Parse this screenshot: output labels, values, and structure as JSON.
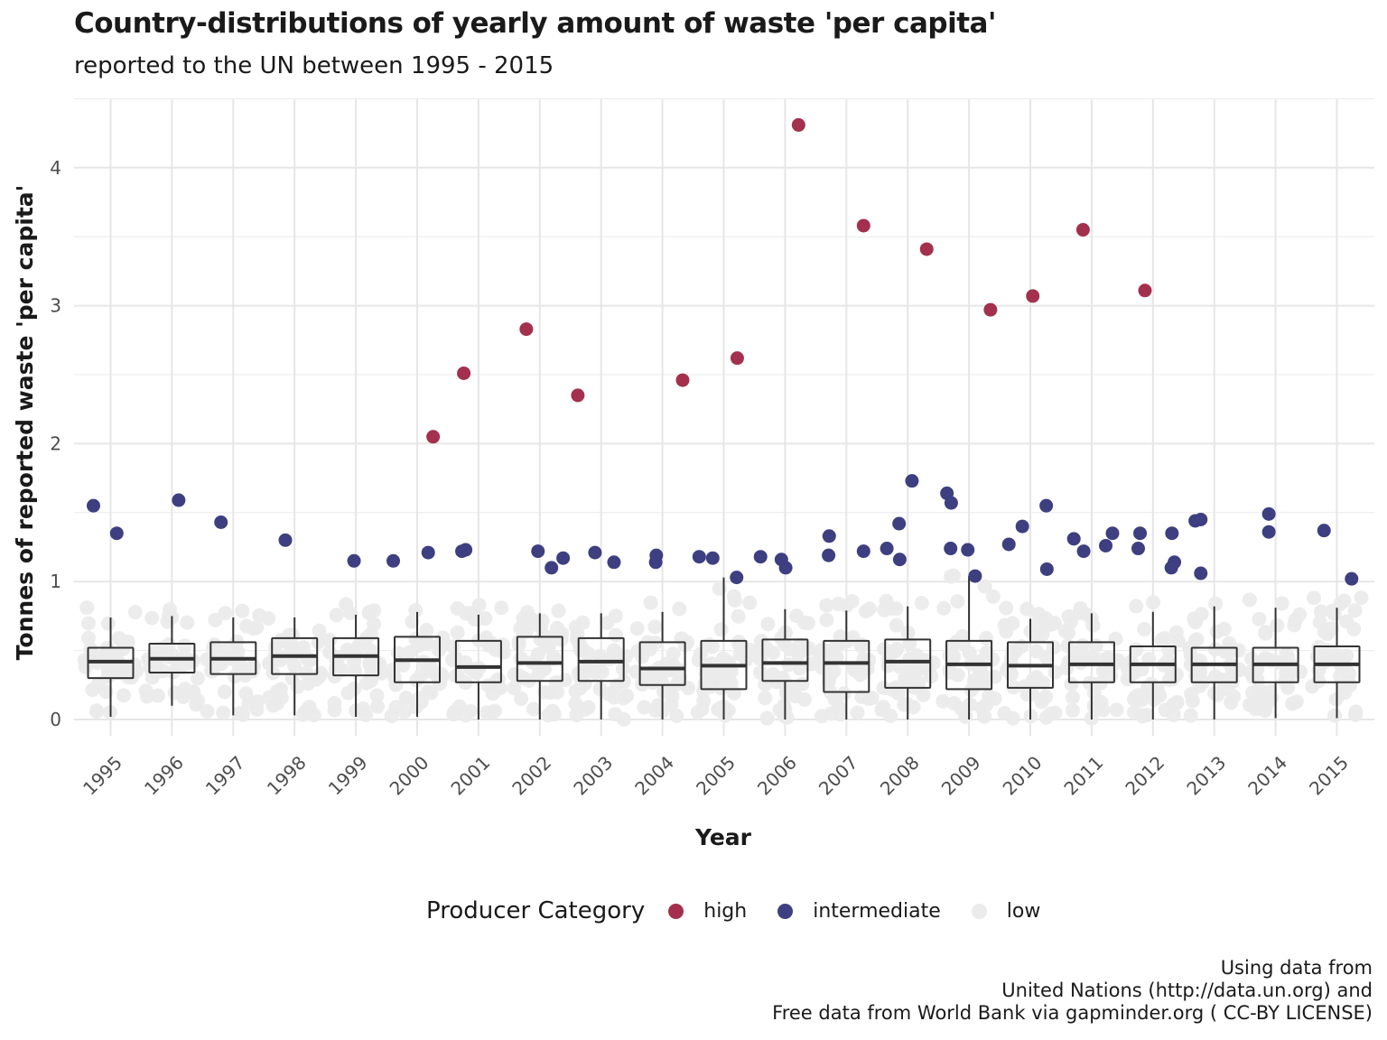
{
  "title": "Country-distributions of yearly amount of waste 'per capita'",
  "subtitle": "reported to the UN between 1995 - 2015",
  "caption": [
    "Using data from",
    "United Nations (http://data.un.org) and",
    "Free data from World Bank via gapminder.org ( CC-BY LICENSE)"
  ],
  "legend": {
    "title": "Producer Category",
    "items": [
      {
        "label": "high",
        "color": "#a3304d"
      },
      {
        "label": "intermediate",
        "color": "#3d3f80"
      },
      {
        "label": "low",
        "color": "#ebebeb"
      }
    ]
  },
  "chart_data": {
    "type": "box+scatter",
    "xlabel": "Year",
    "ylabel": "Tonnes of reported waste 'per capita'",
    "ylim": [
      0,
      4.5
    ],
    "yticks": [
      0,
      1,
      2,
      3,
      4
    ],
    "categories": [
      "1995",
      "1996",
      "1997",
      "1998",
      "1999",
      "2000",
      "2001",
      "2002",
      "2003",
      "2004",
      "2005",
      "2006",
      "2007",
      "2008",
      "2009",
      "2010",
      "2011",
      "2012",
      "2013",
      "2014",
      "2015"
    ],
    "boxes": [
      {
        "year": "1995",
        "whisker_low": 0.02,
        "q1": 0.3,
        "median": 0.42,
        "q3": 0.52,
        "whisker_high": 0.74
      },
      {
        "year": "1996",
        "whisker_low": 0.1,
        "q1": 0.34,
        "median": 0.44,
        "q3": 0.55,
        "whisker_high": 0.75
      },
      {
        "year": "1997",
        "whisker_low": 0.03,
        "q1": 0.33,
        "median": 0.44,
        "q3": 0.56,
        "whisker_high": 0.74
      },
      {
        "year": "1998",
        "whisker_low": 0.03,
        "q1": 0.33,
        "median": 0.46,
        "q3": 0.59,
        "whisker_high": 0.74
      },
      {
        "year": "1999",
        "whisker_low": 0.02,
        "q1": 0.32,
        "median": 0.46,
        "q3": 0.59,
        "whisker_high": 0.76
      },
      {
        "year": "2000",
        "whisker_low": 0.02,
        "q1": 0.27,
        "median": 0.43,
        "q3": 0.6,
        "whisker_high": 0.78
      },
      {
        "year": "2001",
        "whisker_low": 0.0,
        "q1": 0.27,
        "median": 0.38,
        "q3": 0.57,
        "whisker_high": 0.76
      },
      {
        "year": "2002",
        "whisker_low": 0.0,
        "q1": 0.28,
        "median": 0.41,
        "q3": 0.6,
        "whisker_high": 0.77
      },
      {
        "year": "2003",
        "whisker_low": 0.0,
        "q1": 0.28,
        "median": 0.42,
        "q3": 0.59,
        "whisker_high": 0.77
      },
      {
        "year": "2004",
        "whisker_low": 0.0,
        "q1": 0.25,
        "median": 0.37,
        "q3": 0.56,
        "whisker_high": 0.78
      },
      {
        "year": "2005",
        "whisker_low": 0.0,
        "q1": 0.22,
        "median": 0.39,
        "q3": 0.57,
        "whisker_high": 1.03
      },
      {
        "year": "2006",
        "whisker_low": 0.0,
        "q1": 0.28,
        "median": 0.41,
        "q3": 0.58,
        "whisker_high": 0.8
      },
      {
        "year": "2007",
        "whisker_low": 0.0,
        "q1": 0.2,
        "median": 0.41,
        "q3": 0.57,
        "whisker_high": 0.79
      },
      {
        "year": "2008",
        "whisker_low": 0.0,
        "q1": 0.23,
        "median": 0.42,
        "q3": 0.58,
        "whisker_high": 0.82
      },
      {
        "year": "2009",
        "whisker_low": 0.0,
        "q1": 0.22,
        "median": 0.4,
        "q3": 0.57,
        "whisker_high": 1.04
      },
      {
        "year": "2010",
        "whisker_low": 0.0,
        "q1": 0.23,
        "median": 0.39,
        "q3": 0.56,
        "whisker_high": 0.73
      },
      {
        "year": "2011",
        "whisker_low": 0.0,
        "q1": 0.27,
        "median": 0.4,
        "q3": 0.56,
        "whisker_high": 0.77
      },
      {
        "year": "2012",
        "whisker_low": 0.0,
        "q1": 0.27,
        "median": 0.4,
        "q3": 0.53,
        "whisker_high": 0.78
      },
      {
        "year": "2013",
        "whisker_low": 0.0,
        "q1": 0.27,
        "median": 0.4,
        "q3": 0.52,
        "whisker_high": 0.82
      },
      {
        "year": "2014",
        "whisker_low": 0.01,
        "q1": 0.27,
        "median": 0.4,
        "q3": 0.52,
        "whisker_high": 0.81
      },
      {
        "year": "2015",
        "whisker_low": 0.01,
        "q1": 0.27,
        "median": 0.4,
        "q3": 0.53,
        "whisker_high": 0.81
      }
    ],
    "points": [
      {
        "x": 1994.72,
        "y": 1.55,
        "cat": "intermediate"
      },
      {
        "x": 1995.1,
        "y": 1.35,
        "cat": "intermediate"
      },
      {
        "x": 1996.11,
        "y": 1.59,
        "cat": "intermediate"
      },
      {
        "x": 1996.8,
        "y": 1.43,
        "cat": "intermediate"
      },
      {
        "x": 1997.85,
        "y": 1.3,
        "cat": "intermediate"
      },
      {
        "x": 1998.97,
        "y": 1.15,
        "cat": "intermediate"
      },
      {
        "x": 1999.61,
        "y": 1.15,
        "cat": "intermediate"
      },
      {
        "x": 2000.18,
        "y": 1.21,
        "cat": "intermediate"
      },
      {
        "x": 2000.26,
        "y": 2.05,
        "cat": "high"
      },
      {
        "x": 2000.76,
        "y": 2.51,
        "cat": "high"
      },
      {
        "x": 2000.73,
        "y": 1.22,
        "cat": "intermediate"
      },
      {
        "x": 2000.79,
        "y": 1.23,
        "cat": "intermediate"
      },
      {
        "x": 2001.78,
        "y": 2.83,
        "cat": "high"
      },
      {
        "x": 2001.97,
        "y": 1.22,
        "cat": "intermediate"
      },
      {
        "x": 2002.19,
        "y": 1.1,
        "cat": "intermediate"
      },
      {
        "x": 2002.38,
        "y": 1.17,
        "cat": "intermediate"
      },
      {
        "x": 2002.62,
        "y": 2.35,
        "cat": "high"
      },
      {
        "x": 2002.9,
        "y": 1.21,
        "cat": "intermediate"
      },
      {
        "x": 2003.21,
        "y": 1.14,
        "cat": "intermediate"
      },
      {
        "x": 2003.9,
        "y": 1.19,
        "cat": "intermediate"
      },
      {
        "x": 2003.89,
        "y": 1.14,
        "cat": "intermediate"
      },
      {
        "x": 2004.33,
        "y": 2.46,
        "cat": "high"
      },
      {
        "x": 2004.6,
        "y": 1.18,
        "cat": "intermediate"
      },
      {
        "x": 2004.82,
        "y": 1.17,
        "cat": "intermediate"
      },
      {
        "x": 2005.22,
        "y": 2.62,
        "cat": "high"
      },
      {
        "x": 2005.21,
        "y": 1.03,
        "cat": "intermediate"
      },
      {
        "x": 2005.6,
        "y": 1.18,
        "cat": "intermediate"
      },
      {
        "x": 2005.94,
        "y": 1.16,
        "cat": "intermediate"
      },
      {
        "x": 2006.01,
        "y": 1.1,
        "cat": "intermediate"
      },
      {
        "x": 2006.22,
        "y": 4.31,
        "cat": "high"
      },
      {
        "x": 2006.72,
        "y": 1.33,
        "cat": "intermediate"
      },
      {
        "x": 2006.71,
        "y": 1.19,
        "cat": "intermediate"
      },
      {
        "x": 2007.28,
        "y": 3.58,
        "cat": "high"
      },
      {
        "x": 2007.28,
        "y": 1.22,
        "cat": "intermediate"
      },
      {
        "x": 2007.66,
        "y": 1.24,
        "cat": "intermediate"
      },
      {
        "x": 2007.86,
        "y": 1.42,
        "cat": "intermediate"
      },
      {
        "x": 2007.87,
        "y": 1.16,
        "cat": "intermediate"
      },
      {
        "x": 2008.07,
        "y": 1.73,
        "cat": "intermediate"
      },
      {
        "x": 2008.31,
        "y": 3.41,
        "cat": "high"
      },
      {
        "x": 2008.64,
        "y": 1.64,
        "cat": "intermediate"
      },
      {
        "x": 2008.71,
        "y": 1.57,
        "cat": "intermediate"
      },
      {
        "x": 2008.7,
        "y": 1.24,
        "cat": "intermediate"
      },
      {
        "x": 2008.98,
        "y": 1.23,
        "cat": "intermediate"
      },
      {
        "x": 2009.1,
        "y": 1.04,
        "cat": "intermediate"
      },
      {
        "x": 2009.35,
        "y": 2.97,
        "cat": "high"
      },
      {
        "x": 2009.65,
        "y": 1.27,
        "cat": "intermediate"
      },
      {
        "x": 2009.87,
        "y": 1.4,
        "cat": "intermediate"
      },
      {
        "x": 2010.04,
        "y": 3.07,
        "cat": "high"
      },
      {
        "x": 2010.26,
        "y": 1.55,
        "cat": "intermediate"
      },
      {
        "x": 2010.27,
        "y": 1.09,
        "cat": "intermediate"
      },
      {
        "x": 2010.71,
        "y": 1.31,
        "cat": "intermediate"
      },
      {
        "x": 2010.86,
        "y": 3.55,
        "cat": "high"
      },
      {
        "x": 2010.87,
        "y": 1.22,
        "cat": "intermediate"
      },
      {
        "x": 2011.23,
        "y": 1.26,
        "cat": "intermediate"
      },
      {
        "x": 2011.34,
        "y": 1.35,
        "cat": "intermediate"
      },
      {
        "x": 2011.76,
        "y": 1.24,
        "cat": "intermediate"
      },
      {
        "x": 2011.79,
        "y": 1.35,
        "cat": "intermediate"
      },
      {
        "x": 2011.87,
        "y": 3.11,
        "cat": "high"
      },
      {
        "x": 2012.31,
        "y": 1.35,
        "cat": "intermediate"
      },
      {
        "x": 2012.35,
        "y": 1.14,
        "cat": "intermediate"
      },
      {
        "x": 2012.3,
        "y": 1.1,
        "cat": "intermediate"
      },
      {
        "x": 2012.69,
        "y": 1.44,
        "cat": "intermediate"
      },
      {
        "x": 2012.78,
        "y": 1.45,
        "cat": "intermediate"
      },
      {
        "x": 2012.78,
        "y": 1.06,
        "cat": "intermediate"
      },
      {
        "x": 2013.89,
        "y": 1.49,
        "cat": "intermediate"
      },
      {
        "x": 2013.89,
        "y": 1.36,
        "cat": "intermediate"
      },
      {
        "x": 2014.79,
        "y": 1.37,
        "cat": "intermediate"
      },
      {
        "x": 2015.24,
        "y": 1.02,
        "cat": "intermediate"
      }
    ]
  }
}
